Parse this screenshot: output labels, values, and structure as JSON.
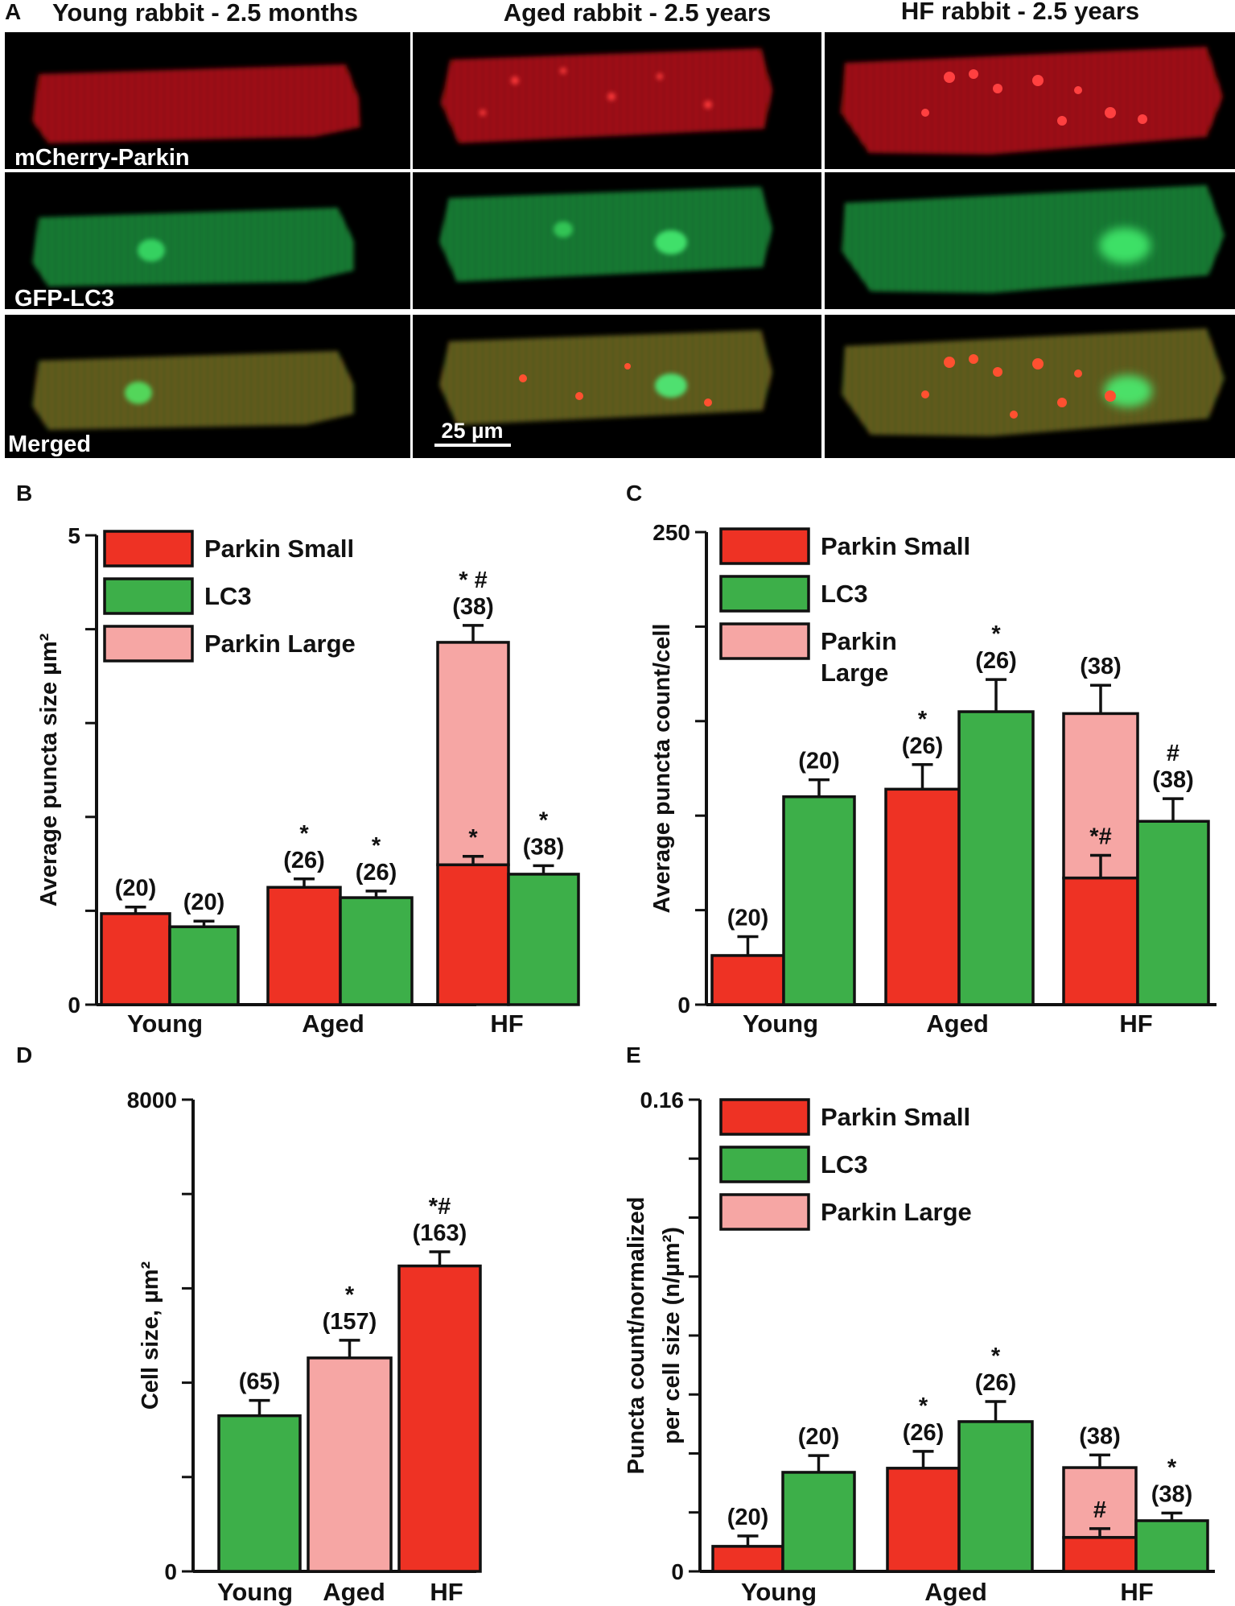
{
  "panel_a": {
    "letter": "A",
    "columns": [
      "Young rabbit - 2.5 months",
      "Aged rabbit - 2.5 years",
      "HF rabbit - 2.5 years"
    ],
    "rows": [
      "mCherry-Parkin",
      "GFP-LC3",
      "Merged"
    ],
    "scale_bar": "25 µm"
  },
  "colors": {
    "parkin_small": "#ee3224",
    "lc3": "#3daf49",
    "parkin_large": "#f6a6a4"
  },
  "chart_data": [
    {
      "id": "B",
      "letter": "B",
      "type": "bar",
      "ylabel": "Average puncta  size µm²",
      "ylim": [
        0,
        5
      ],
      "y_tick_labels": [
        "0",
        "5"
      ],
      "categories": [
        "Young",
        "Aged",
        "HF"
      ],
      "legend": [
        "Parkin Small",
        "LC3",
        "Parkin Large"
      ],
      "legend_placement": "top-left",
      "series": [
        {
          "name": "Parkin Small",
          "values": [
            0.97,
            1.25,
            1.49
          ],
          "errors": [
            0.07,
            0.09,
            0.09
          ],
          "labels": [
            "(20)",
            "*\n(26)",
            "*"
          ]
        },
        {
          "name": "LC3",
          "values": [
            0.83,
            1.14,
            1.39
          ],
          "errors": [
            0.06,
            0.07,
            0.09
          ],
          "labels": [
            "(20)",
            "*\n(26)",
            "*\n(38)"
          ]
        },
        {
          "name": "Parkin Large",
          "stacked_on": "Parkin Small",
          "values": [
            null,
            null,
            3.86
          ],
          "errors": [
            null,
            null,
            0.18
          ],
          "labels": [
            "",
            "",
            "* #\n(38)"
          ]
        }
      ]
    },
    {
      "id": "C",
      "letter": "C",
      "type": "bar",
      "ylabel": "Average puncta  count/cell",
      "ylim": [
        0,
        250
      ],
      "y_tick_labels": [
        "0",
        "250"
      ],
      "categories": [
        "Young",
        "Aged",
        "HF"
      ],
      "legend": [
        "Parkin Small",
        "LC3",
        "Parkin\nLarge"
      ],
      "legend_placement": "top-left",
      "series": [
        {
          "name": "Parkin Small",
          "values": [
            26,
            114,
            67
          ],
          "errors": [
            10,
            13,
            12
          ],
          "labels": [
            "(20)",
            "*\n(26)",
            "*#"
          ]
        },
        {
          "name": "LC3",
          "values": [
            110,
            155,
            97
          ],
          "errors": [
            9,
            17,
            12
          ],
          "labels": [
            "(20)",
            "*\n(26)",
            "#\n(38)"
          ]
        },
        {
          "name": "Parkin Large",
          "stacked_on": "Parkin Small",
          "values": [
            null,
            null,
            154
          ],
          "errors": [
            null,
            null,
            15
          ],
          "labels": [
            "",
            "",
            "(38)"
          ]
        }
      ]
    },
    {
      "id": "D",
      "letter": "D",
      "type": "bar",
      "ylabel": "Cell size, µm²",
      "ylim": [
        0,
        8000
      ],
      "y_tick_labels": [
        "0",
        "8000"
      ],
      "categories": [
        "Young",
        "Aged",
        "HF"
      ],
      "values": [
        2640,
        3620,
        5180
      ],
      "errors": [
        260,
        300,
        240
      ],
      "labels": [
        "(65)",
        "*\n(157)",
        "*#\n(163)"
      ],
      "colors": [
        "#3daf49",
        "#f6a6a4",
        "#ee3224"
      ]
    },
    {
      "id": "E",
      "letter": "E",
      "type": "bar",
      "ylabel": "Puncta count/normalized\nper cell size (n/µm²)",
      "ylim": [
        0,
        0.16
      ],
      "y_tick_labels": [
        "0",
        "0.16"
      ],
      "categories": [
        "Young",
        "Aged",
        "HF"
      ],
      "legend": [
        "Parkin Small",
        "LC3",
        "Parkin Large"
      ],
      "legend_placement": "top-left",
      "series": [
        {
          "name": "Parkin Small",
          "values": [
            0.0085,
            0.035,
            0.0115
          ],
          "errors": [
            0.0035,
            0.0057,
            0.003
          ],
          "labels": [
            "(20)",
            "*\n(26)",
            "#"
          ]
        },
        {
          "name": "LC3",
          "values": [
            0.0336,
            0.0508,
            0.0172
          ],
          "errors": [
            0.0057,
            0.0068,
            0.0026
          ],
          "labels": [
            "(20)",
            "*\n(26)",
            "*\n(38)"
          ]
        },
        {
          "name": "Parkin Large",
          "stacked_on": "Parkin Small",
          "values": [
            null,
            null,
            0.0352
          ],
          "errors": [
            null,
            null,
            0.0043
          ],
          "labels": [
            "",
            "",
            "(38)"
          ]
        }
      ]
    }
  ]
}
